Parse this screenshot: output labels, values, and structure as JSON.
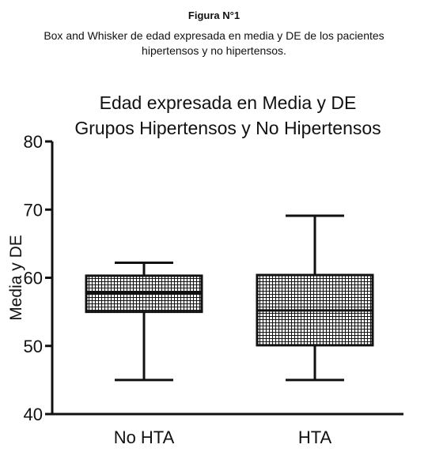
{
  "figure_caption": {
    "label": "Figura N°1",
    "text_line1": "Box and Whisker de edad expresada en media y DE de los pacientes",
    "text_line2": "hipertensos y no hipertensos."
  },
  "chart_data": {
    "type": "box",
    "title_lines": [
      "Edad expresada en Media y DE",
      "Grupos Hipertensos y No Hipertensos"
    ],
    "xlabel": "",
    "ylabel": "Media y DE",
    "ylim": [
      40,
      80
    ],
    "yticks": [
      40,
      50,
      60,
      70,
      80
    ],
    "grid": false,
    "box_fill": "crosshatch",
    "categories": [
      "No HTA",
      "HTA"
    ],
    "boxes": [
      {
        "category": "No HTA",
        "whisker_low": 45,
        "q1": 55,
        "median": 57.8,
        "q3": 60.3,
        "whisker_high": 62.2
      },
      {
        "category": "HTA",
        "whisker_low": 45,
        "q1": 50.1,
        "median": 55.2,
        "q3": 60.4,
        "whisker_high": 69.1
      }
    ],
    "colors": {
      "ink": "#111111",
      "background": "#ffffff"
    }
  }
}
